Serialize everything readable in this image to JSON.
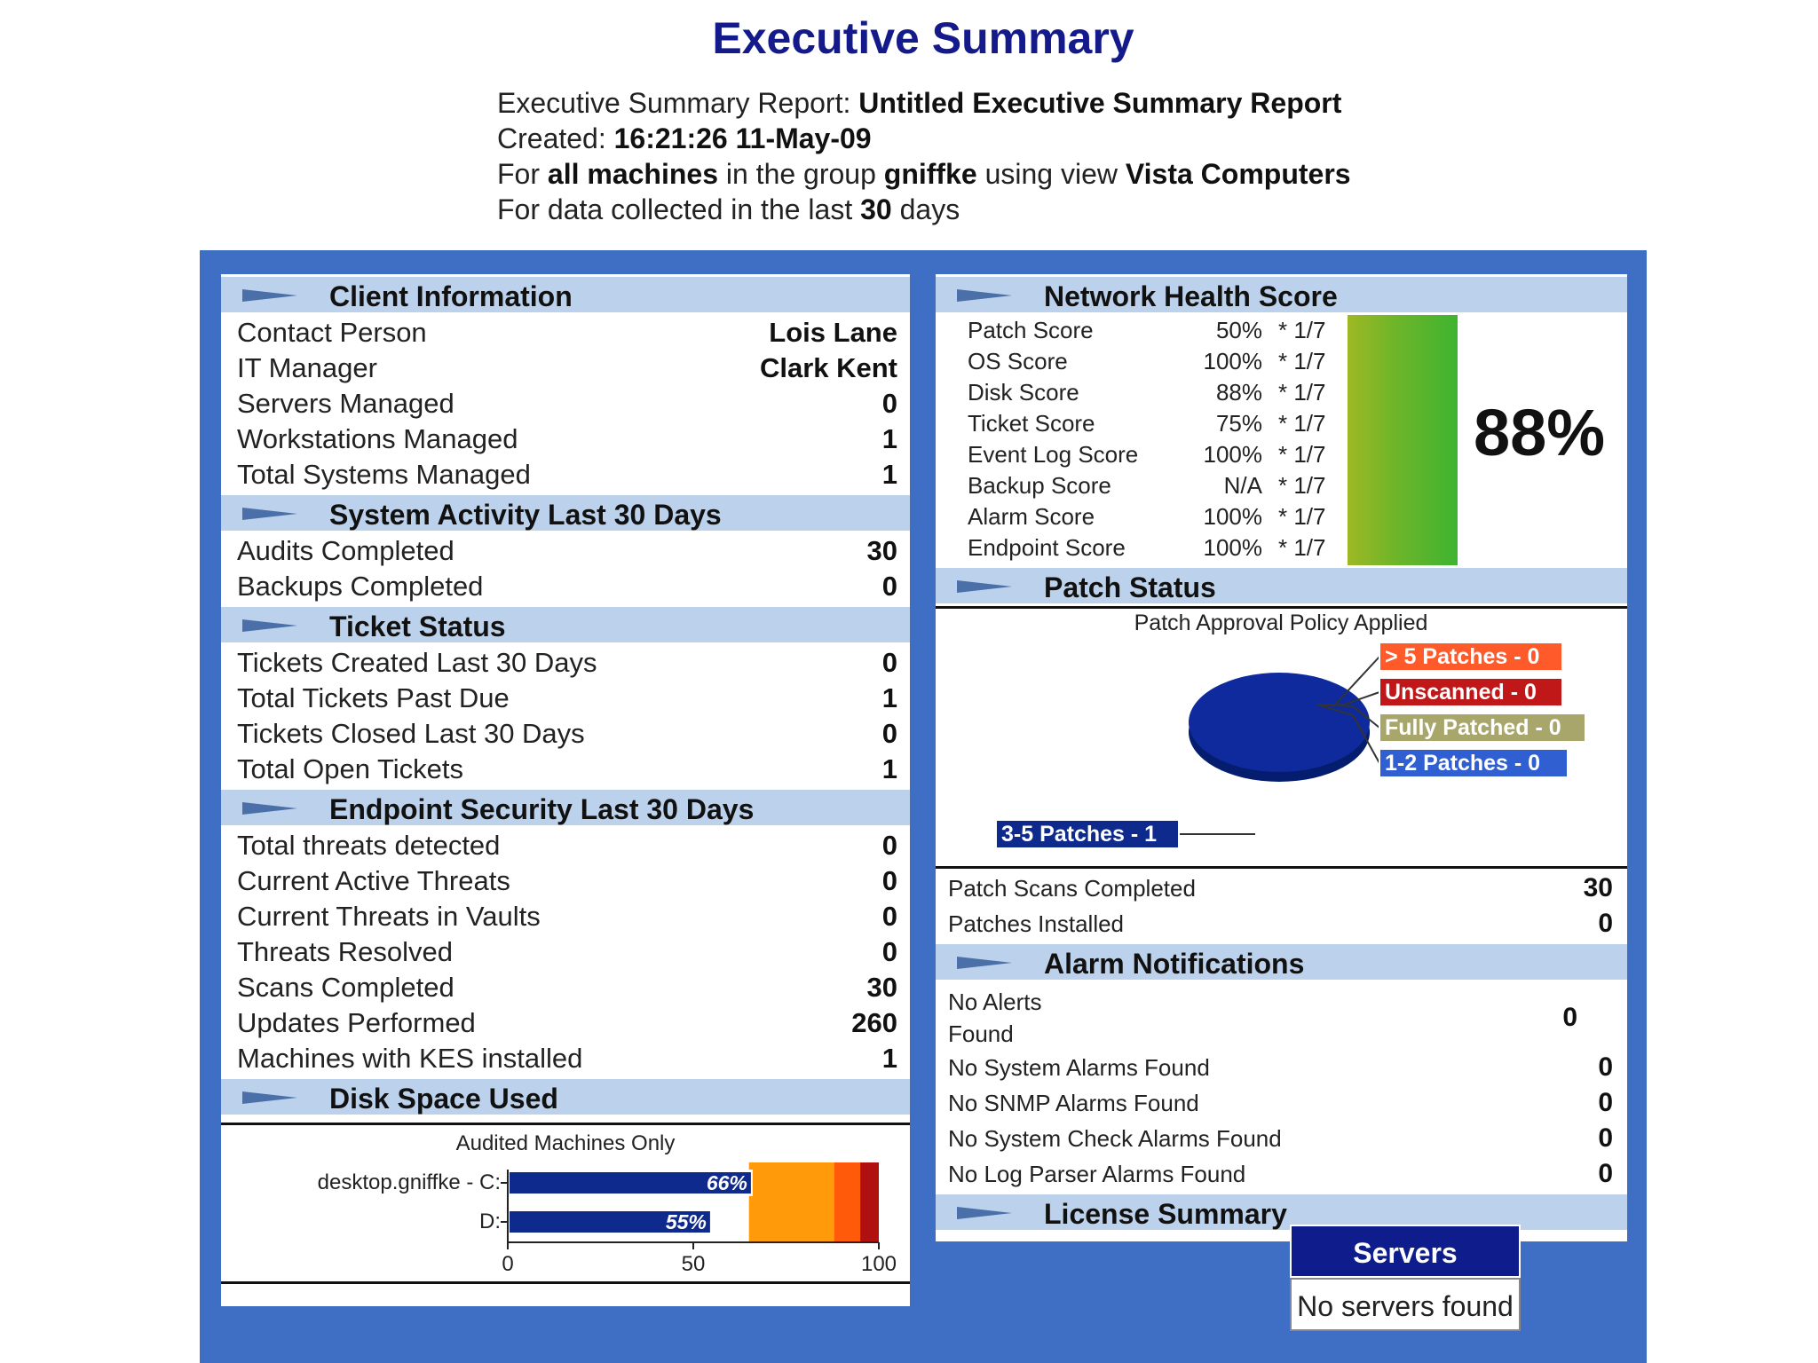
{
  "header": {
    "title": "Executive Summary",
    "report_label": "Executive Summary Report:",
    "report_name": "Untitled Executive Summary Report",
    "created_label": "Created:",
    "created_value": "16:21:26 11-May-09",
    "for_label": "For",
    "all_machines": "all machines",
    "in_group_label": "in the group",
    "group_name": "gniffke",
    "using_view_label": "using view",
    "view_name": "Vista Computers",
    "collected_label": "For data collected in the last",
    "collected_days": "30",
    "collected_unit": "days"
  },
  "client_info": {
    "title": "Client Information",
    "rows": [
      {
        "label": "Contact Person",
        "value": "Lois Lane"
      },
      {
        "label": "IT Manager",
        "value": "Clark Kent"
      },
      {
        "label": "Servers Managed",
        "value": "0"
      },
      {
        "label": "Workstations Managed",
        "value": "1"
      },
      {
        "label": "Total Systems Managed",
        "value": "1"
      }
    ]
  },
  "system_activity": {
    "title": "System Activity Last 30 Days",
    "rows": [
      {
        "label": "Audits Completed",
        "value": "30"
      },
      {
        "label": "Backups Completed",
        "value": "0"
      }
    ]
  },
  "ticket_status": {
    "title": "Ticket Status",
    "rows": [
      {
        "label": "Tickets Created Last 30 Days",
        "value": "0"
      },
      {
        "label": "Total Tickets Past Due",
        "value": "1"
      },
      {
        "label": "Tickets Closed Last 30 Days",
        "value": "0"
      },
      {
        "label": "Total Open Tickets",
        "value": "1"
      }
    ]
  },
  "endpoint_security": {
    "title": "Endpoint Security Last 30 Days",
    "rows": [
      {
        "label": "Total threats detected",
        "value": "0"
      },
      {
        "label": "Current Active Threats",
        "value": "0"
      },
      {
        "label": "Current Threats in Vaults",
        "value": "0"
      },
      {
        "label": "Threats Resolved",
        "value": "0"
      },
      {
        "label": "Scans Completed",
        "value": "30"
      },
      {
        "label": "Updates Performed",
        "value": "260"
      },
      {
        "label": "Machines with KES installed",
        "value": "1"
      }
    ]
  },
  "disk_space": {
    "title": "Disk Space Used",
    "subtitle": "Audited Machines Only",
    "machine": "desktop.gniffke - C:",
    "drive_d": "D:",
    "bars": [
      {
        "label": "desktop.gniffke - C:",
        "value": 66,
        "text": "66%"
      },
      {
        "label": "D:",
        "value": 55,
        "text": "55%"
      }
    ],
    "ticks": [
      "0",
      "50",
      "100"
    ],
    "colors": {
      "bar": "#0e2a8c",
      "band_orange": "#ff9a0a",
      "band_red_orange": "#ff5a0a",
      "band_red": "#b01010"
    }
  },
  "network_health": {
    "title": "Network Health Score",
    "rows": [
      {
        "label": "Patch Score",
        "pct": "50%",
        "weight": "* 1/7"
      },
      {
        "label": "OS Score",
        "pct": "100%",
        "weight": "* 1/7"
      },
      {
        "label": "Disk Score",
        "pct": "88%",
        "weight": "* 1/7"
      },
      {
        "label": "Ticket Score",
        "pct": "75%",
        "weight": "* 1/7"
      },
      {
        "label": "Event Log Score",
        "pct": "100%",
        "weight": "* 1/7"
      },
      {
        "label": "Backup Score",
        "pct": "N/A",
        "weight": "* 1/7"
      },
      {
        "label": "Alarm Score",
        "pct": "100%",
        "weight": "* 1/7"
      },
      {
        "label": "Endpoint Score",
        "pct": "100%",
        "weight": "* 1/7"
      }
    ],
    "overall": "88%"
  },
  "patch_status": {
    "title": "Patch Status",
    "chart_title": "Patch Approval Policy Applied",
    "legend": [
      {
        "label": "> 5 Patches - 0",
        "color": "#ff5a2a"
      },
      {
        "label": "Unscanned - 0",
        "color": "#c01818"
      },
      {
        "label": "Fully Patched - 0",
        "color": "#a8a66a"
      },
      {
        "label": "1-2 Patches - 0",
        "color": "#2f5fd0"
      },
      {
        "label": "3-5 Patches - 1",
        "color": "#0e2a8c"
      }
    ],
    "rows": [
      {
        "label": "Patch Scans Completed",
        "value": "30"
      },
      {
        "label": "Patches Installed",
        "value": "0"
      }
    ]
  },
  "alarm_notifications": {
    "title": "Alarm Notifications",
    "rows": [
      {
        "label": "No Alerts",
        "label2": "Found",
        "value": "0"
      },
      {
        "label": "No System Alarms Found",
        "value": "0"
      },
      {
        "label": "No SNMP Alarms Found",
        "value": "0"
      },
      {
        "label": "No System Check Alarms Found",
        "value": "0"
      },
      {
        "label": "No Log Parser Alarms Found",
        "value": "0"
      }
    ]
  },
  "license_summary": {
    "title": "License Summary",
    "servers_label": "Servers",
    "servers_value": "No servers found"
  },
  "chart_data": [
    {
      "type": "bar",
      "title": "Audited Machines Only",
      "categories": [
        "desktop.gniffke - C:",
        "D:"
      ],
      "values": [
        66,
        55
      ],
      "xlim": [
        0,
        100
      ]
    },
    {
      "type": "pie",
      "title": "Patch Approval Policy Applied",
      "categories": [
        "> 5 Patches",
        "Unscanned",
        "Fully Patched",
        "1-2 Patches",
        "3-5 Patches"
      ],
      "values": [
        0,
        0,
        0,
        0,
        1
      ]
    }
  ]
}
